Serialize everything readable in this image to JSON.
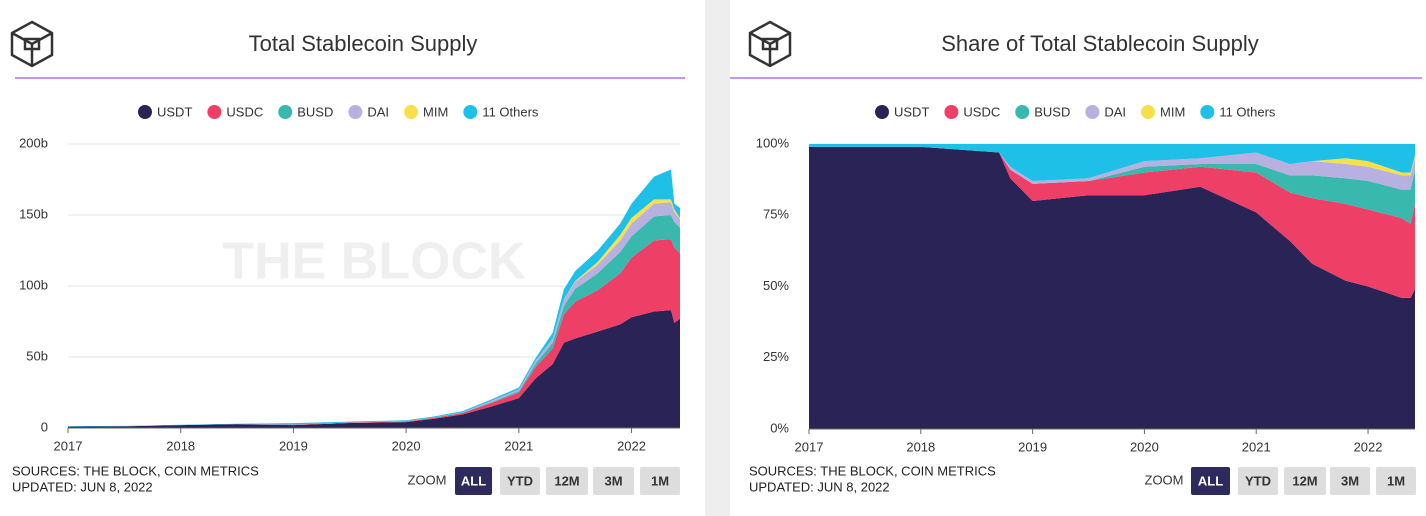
{
  "chart_data": [
    {
      "type": "stacked_area",
      "title": "Total Stablecoin Supply",
      "watermark": "THE BLOCK",
      "source": "SOURCES: THE BLOCK, COIN METRICS",
      "updated": "UPDATED: JUN 8, 2022",
      "zoom_label": "ZOOM",
      "zoom_buttons": [
        "ALL",
        "YTD",
        "12M",
        "3M",
        "1M"
      ],
      "x": [
        2017.0,
        2017.5,
        2018.0,
        2018.5,
        2019.0,
        2019.5,
        2020.0,
        2020.25,
        2020.5,
        2020.75,
        2021.0,
        2021.15,
        2021.3,
        2021.4,
        2021.5,
        2021.7,
        2021.9,
        2022.0,
        2022.2,
        2022.35,
        2022.38,
        2022.43
      ],
      "series": [
        {
          "name": "USDT",
          "color": "#2a2356",
          "values": [
            1,
            1.2,
            2,
            2.7,
            2,
            3.5,
            4.1,
            6.5,
            9.5,
            15,
            21,
            35,
            45,
            60,
            63,
            68,
            73,
            78,
            82,
            83,
            74,
            77
          ]
        },
        {
          "name": "USDC",
          "color": "#ee3f67",
          "values": [
            0,
            0,
            0,
            0,
            0.3,
            0.4,
            0.5,
            0.7,
            1.1,
            2.5,
            4,
            8,
            11,
            20,
            26,
            29,
            36,
            42,
            50,
            50,
            53,
            46
          ]
        },
        {
          "name": "BUSD",
          "color": "#39b9ae",
          "values": [
            0,
            0,
            0,
            0,
            0,
            0,
            0.2,
            0.2,
            0.2,
            0.5,
            1,
            2.5,
            4,
            6,
            9,
            12,
            15,
            15,
            17,
            17,
            18,
            18
          ]
        },
        {
          "name": "DAI",
          "color": "#b8b0e0",
          "values": [
            0,
            0,
            0,
            0,
            0.1,
            0.1,
            0.1,
            0.1,
            0.2,
            0.9,
            1.2,
            2,
            3,
            4.5,
            5,
            6,
            8,
            9,
            9,
            9,
            7,
            6
          ]
        },
        {
          "name": "MIM",
          "color": "#f7e04b",
          "values": [
            0,
            0,
            0,
            0,
            0,
            0,
            0,
            0,
            0,
            0,
            0,
            0,
            0,
            0.2,
            0.5,
            2,
            4,
            4,
            3,
            2,
            2,
            1
          ]
        },
        {
          "name": "11 Others",
          "color": "#1ec0e8",
          "values": [
            0.3,
            0.3,
            0.3,
            0.3,
            1,
            0.5,
            0.6,
            0.7,
            0.9,
            1,
            1.3,
            2,
            4,
            7,
            7,
            8,
            8,
            10,
            16,
            21,
            4,
            7
          ]
        }
      ],
      "xlim": [
        2017,
        2022.43
      ],
      "xticks": [
        2017,
        2018,
        2019,
        2020,
        2021,
        2022
      ],
      "ylim": [
        0,
        200
      ],
      "yticks": [
        0,
        {
          "value": 50,
          "label": "50b"
        },
        {
          "value": 100,
          "label": "100b"
        },
        {
          "value": 150,
          "label": "150b"
        },
        {
          "value": 200,
          "label": "200b"
        }
      ],
      "grid": true
    },
    {
      "type": "stacked_area",
      "title": "Share of Total Stablecoin Supply",
      "watermark": "THE BLOCK",
      "source": "SOURCES: THE BLOCK, COIN METRICS",
      "updated": "UPDATED: JUN 8, 2022",
      "zoom_label": "ZOOM",
      "zoom_buttons": [
        "ALL",
        "YTD",
        "12M",
        "3M",
        "1M"
      ],
      "x": [
        2017.0,
        2018.0,
        2018.7,
        2018.8,
        2019.0,
        2019.5,
        2020.0,
        2020.5,
        2021.0,
        2021.3,
        2021.5,
        2021.8,
        2022.0,
        2022.3,
        2022.38,
        2022.42
      ],
      "series": [
        {
          "name": "USDT",
          "color": "#2a2356",
          "values": [
            99,
            99,
            97,
            88,
            80,
            82,
            82,
            85,
            76,
            66,
            58,
            52,
            50,
            46,
            46,
            49
          ]
        },
        {
          "name": "USDC",
          "color": "#ee3f67",
          "values": [
            0,
            0,
            0,
            3,
            6,
            5,
            8,
            7,
            14,
            17,
            23,
            27,
            27,
            28,
            26,
            30
          ]
        },
        {
          "name": "BUSD",
          "color": "#39b9ae",
          "values": [
            0,
            0,
            0,
            0,
            0,
            0,
            2,
            1,
            3,
            6,
            8,
            9,
            10,
            10,
            12,
            12
          ]
        },
        {
          "name": "DAI",
          "color": "#b8b0e0",
          "values": [
            0,
            0,
            0,
            1,
            1,
            1,
            2,
            2,
            4,
            4,
            5,
            5,
            5,
            5,
            5,
            4
          ]
        },
        {
          "name": "MIM",
          "color": "#f7e04b",
          "values": [
            0,
            0,
            0,
            0,
            0,
            0,
            0,
            0,
            0,
            0,
            0,
            2,
            2,
            1,
            1,
            1
          ]
        },
        {
          "name": "11 Others",
          "color": "#1ec0e8",
          "values": [
            1,
            1,
            3,
            8,
            13,
            12,
            6,
            5,
            3,
            7,
            6,
            5,
            6,
            10,
            10,
            4
          ]
        }
      ],
      "xlim": [
        2017,
        2022.42
      ],
      "xticks": [
        2017,
        2018,
        2019,
        2020,
        2021,
        2022
      ],
      "ylim": [
        0,
        100
      ],
      "yticks": [
        {
          "value": 0,
          "label": "0%"
        },
        {
          "value": 25,
          "label": "25%"
        },
        {
          "value": 50,
          "label": "50%"
        },
        {
          "value": 75,
          "label": "75%"
        },
        {
          "value": 100,
          "label": "100%"
        }
      ],
      "grid": true
    }
  ]
}
